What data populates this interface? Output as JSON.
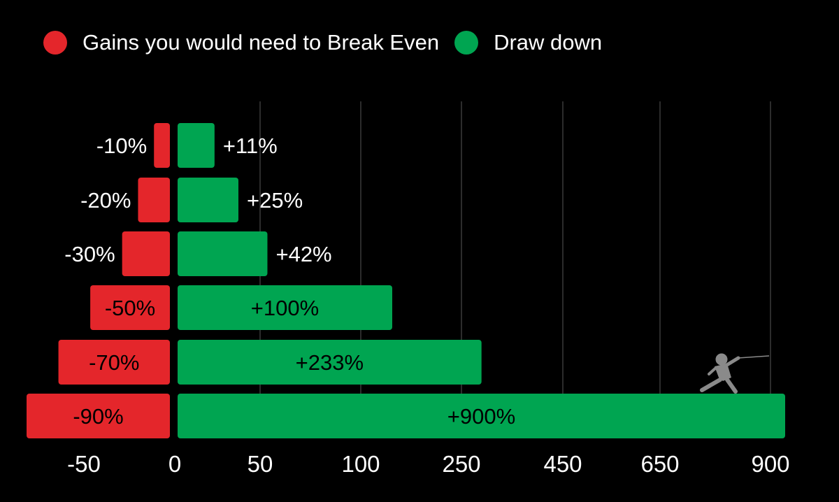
{
  "colors": {
    "drawdown_bar": "#e4262b",
    "gain_bar": "#00a551",
    "background": "#000000",
    "grid": "#3a3a3a"
  },
  "legend": {
    "items": [
      {
        "label": "Gains you would need to Break Even",
        "color": "#e4262b"
      },
      {
        "label": "Draw down",
        "color": "#00a551"
      }
    ]
  },
  "chart_data": {
    "type": "bar",
    "orientation": "horizontal-diverging",
    "x_ticks": [
      "-50",
      "0",
      "50",
      "100",
      "250",
      "450",
      "650",
      "900"
    ],
    "grid": true,
    "legend_position": "top-left",
    "series": [
      {
        "name": "Gains you would need to Break Even",
        "values": [
          -10,
          -20,
          -30,
          -50,
          -70,
          -90
        ],
        "labels": [
          "-10%",
          "-20%",
          "-30%",
          "-50%",
          "-70%",
          "-90%"
        ],
        "color": "#e4262b"
      },
      {
        "name": "Draw down",
        "values": [
          11,
          25,
          42,
          100,
          233,
          900
        ],
        "labels": [
          "+11%",
          "+25%",
          "+42%",
          "+100%",
          "+233%",
          "+900%"
        ],
        "color": "#00a551"
      }
    ],
    "decoration": "fencer-silhouette-icon"
  }
}
